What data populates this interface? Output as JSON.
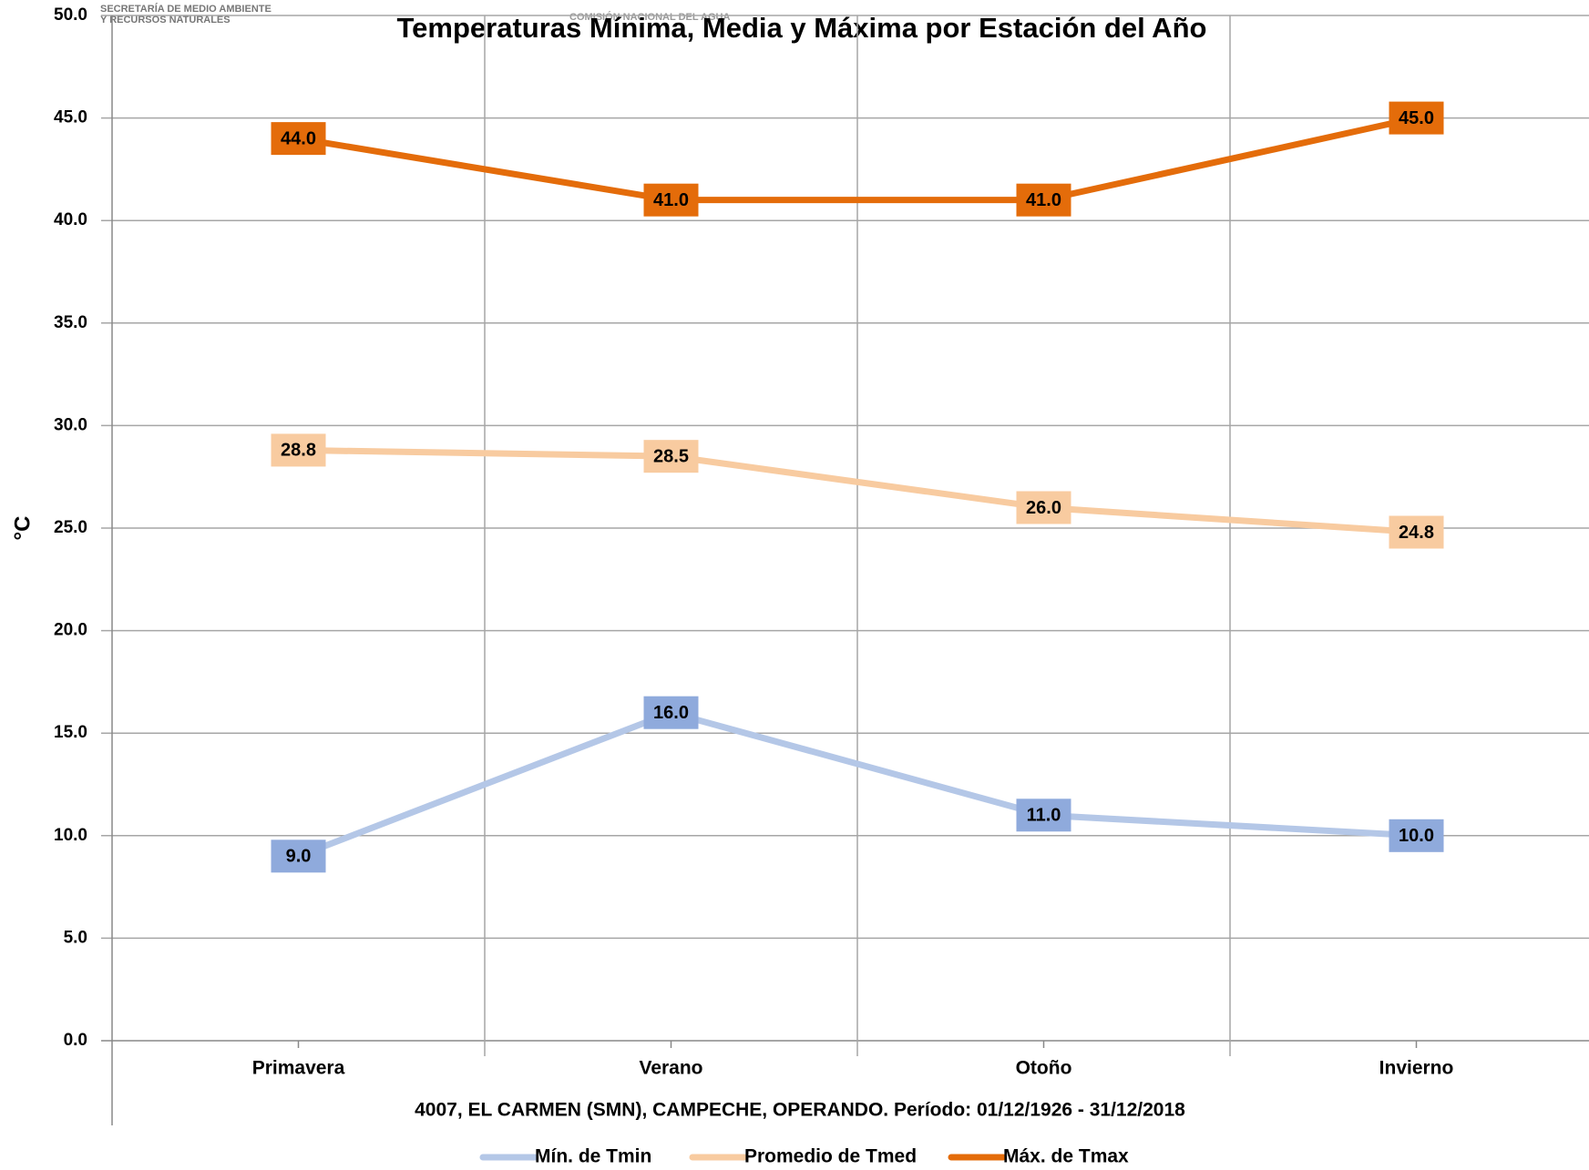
{
  "header": {
    "agency": "SECRETARÍA DE MEDIO AMBIENTE",
    "agency_line2": "Y RECURSOS NATURALES",
    "commission": "COMISIÓN NACIONAL DEL AGUA"
  },
  "chart_data": {
    "type": "line",
    "title": "Temperaturas Mínima, Media y Máxima por Estación del Año",
    "x_label": "4007, EL CARMEN (SMN), CAMPECHE, OPERANDO. Período: 01/12/1926 - 31/12/2018",
    "y_label": "°C",
    "categories": [
      "Primavera",
      "Verano",
      "Otoño",
      "Invierno"
    ],
    "series": [
      {
        "name": "Mín. de Tmin",
        "color": "#b4c7e7",
        "label_color": "#8faadc",
        "values": [
          9,
          16,
          11,
          10
        ],
        "value_labels": [
          "9.0",
          "16.0",
          "11.0",
          "10.0"
        ]
      },
      {
        "name": "Promedio de Tmed",
        "color": "#f8cba0",
        "label_color": "#f8cba0",
        "values": [
          28.8,
          28.5,
          26,
          24.8
        ],
        "value_labels": [
          "28.8",
          "28.5",
          "26.0",
          "24.8"
        ]
      },
      {
        "name": "Máx. de Tmax",
        "color": "#e46c0a",
        "label_color": "#e46c0a",
        "values": [
          44,
          41,
          41,
          45
        ],
        "value_labels": [
          "44.0",
          "41.0",
          "41.0",
          "45.0"
        ]
      }
    ],
    "ylim": [
      0,
      50
    ],
    "yticks": [
      {
        "value": 0,
        "label": "0.0"
      },
      {
        "value": 5,
        "label": "5.0"
      },
      {
        "value": 10,
        "label": "10.0"
      },
      {
        "value": 15,
        "label": "15.0"
      },
      {
        "value": 20,
        "label": "20.0"
      },
      {
        "value": 25,
        "label": "25.0"
      },
      {
        "value": 30,
        "label": "30.0"
      },
      {
        "value": 35,
        "label": "35.0"
      },
      {
        "value": 40,
        "label": "40.0"
      },
      {
        "value": 45,
        "label": "45.0"
      },
      {
        "value": 50,
        "label": "50.0"
      }
    ],
    "grid": true,
    "legend": "bottom"
  }
}
